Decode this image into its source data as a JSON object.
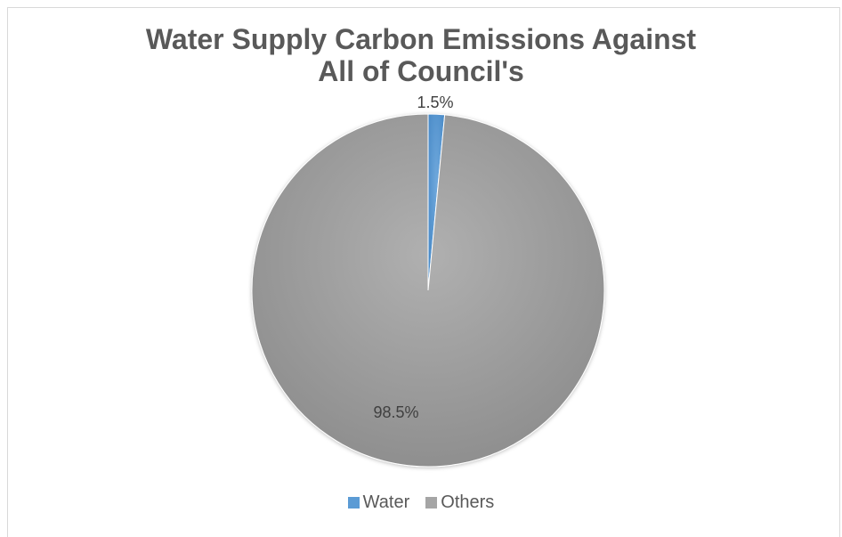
{
  "chart_data": {
    "type": "pie",
    "title_lines": [
      "Water Supply Carbon Emissions Against",
      "All of Council's"
    ],
    "categories": [
      "Water",
      "Others"
    ],
    "values": [
      1.5,
      98.5
    ],
    "data_labels": [
      "1.5%",
      "98.5%"
    ],
    "colors": [
      "#5b9bd5",
      "#a5a5a5"
    ],
    "legend_position": "bottom",
    "start_angle_deg": 0
  }
}
